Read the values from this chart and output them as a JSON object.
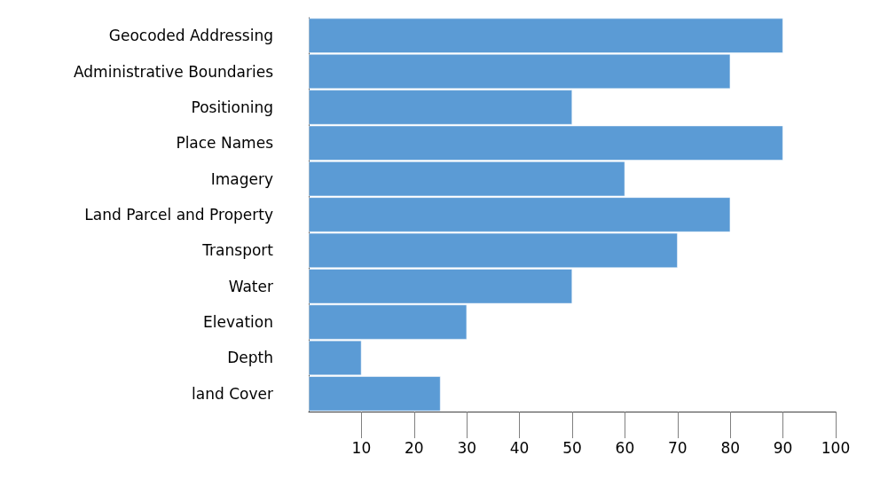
{
  "chart_data": {
    "type": "bar",
    "orientation": "horizontal",
    "categories": [
      "Geocoded Addressing",
      "Administrative Boundaries",
      "Positioning",
      "Place Names",
      "Imagery",
      "Land Parcel and Property",
      "Transport",
      "Water",
      "Elevation",
      "Depth",
      "land Cover"
    ],
    "values": [
      90,
      80,
      50,
      90,
      60,
      80,
      70,
      50,
      30,
      10,
      25
    ],
    "color": "#5b9bd5",
    "xlim": [
      0,
      100
    ],
    "xticks": [
      10,
      20,
      30,
      40,
      50,
      60,
      70,
      80,
      90,
      100
    ]
  }
}
